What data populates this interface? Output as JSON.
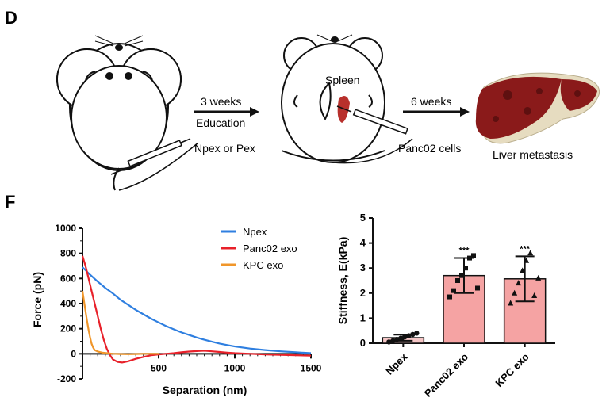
{
  "panel_d": {
    "label": "D",
    "arrow1_top": "3 weeks",
    "arrow1_bottom": "Education",
    "injection_label": "Npex or Pex",
    "spleen_label": "Spleen",
    "arrow2_top": "6 weeks",
    "cells_label": "Panc02 cells",
    "liver_label": "Liver metastasis"
  },
  "panel_f": {
    "label": "F"
  },
  "colors": {
    "npex": "#2f7fe0",
    "panc02": "#e8212a",
    "kpc": "#f0962a",
    "spleen": "#b8302c",
    "liver": "#8a1a1a",
    "bar_panc02": "#f5a3a3",
    "bar_kpc": "#f5a3a3",
    "bar_npex": "#f5c6c6"
  },
  "chart_data": [
    {
      "type": "line",
      "xlabel": "Separation (nm)",
      "ylabel": "Force (pN)",
      "xlim": [
        0,
        1500
      ],
      "ylim": [
        -200,
        1000
      ],
      "xticks": [
        "500",
        "1000",
        "1500"
      ],
      "yticks": [
        "-200",
        "0",
        "200",
        "400",
        "600",
        "800",
        "1000"
      ],
      "legend_position": "top-right",
      "series": [
        {
          "name": "Npex",
          "color": "#2f7fe0",
          "points": [
            [
              0,
              690
            ],
            [
              50,
              630
            ],
            [
              100,
              575
            ],
            [
              150,
              525
            ],
            [
              200,
              480
            ],
            [
              250,
              430
            ],
            [
              300,
              390
            ],
            [
              350,
              350
            ],
            [
              400,
              315
            ],
            [
              450,
              280
            ],
            [
              500,
              250
            ],
            [
              550,
              220
            ],
            [
              600,
              195
            ],
            [
              650,
              170
            ],
            [
              700,
              150
            ],
            [
              750,
              130
            ],
            [
              800,
              112
            ],
            [
              850,
              96
            ],
            [
              900,
              82
            ],
            [
              950,
              70
            ],
            [
              1000,
              58
            ],
            [
              1100,
              42
            ],
            [
              1200,
              30
            ],
            [
              1300,
              20
            ],
            [
              1400,
              12
            ],
            [
              1500,
              5
            ]
          ]
        },
        {
          "name": "Panc02 exo",
          "color": "#e8212a",
          "points": [
            [
              0,
              780
            ],
            [
              20,
              700
            ],
            [
              40,
              600
            ],
            [
              60,
              500
            ],
            [
              80,
              400
            ],
            [
              100,
              300
            ],
            [
              120,
              200
            ],
            [
              140,
              110
            ],
            [
              160,
              40
            ],
            [
              180,
              -10
            ],
            [
              200,
              -45
            ],
            [
              230,
              -65
            ],
            [
              260,
              -70
            ],
            [
              300,
              -60
            ],
            [
              350,
              -40
            ],
            [
              400,
              -25
            ],
            [
              450,
              -12
            ],
            [
              500,
              -5
            ],
            [
              550,
              0
            ],
            [
              600,
              5
            ],
            [
              650,
              12
            ],
            [
              700,
              18
            ],
            [
              750,
              22
            ],
            [
              800,
              25
            ],
            [
              850,
              20
            ],
            [
              900,
              15
            ],
            [
              950,
              10
            ],
            [
              1000,
              5
            ],
            [
              1100,
              0
            ],
            [
              1200,
              -5
            ],
            [
              1300,
              -8
            ],
            [
              1400,
              -12
            ],
            [
              1500,
              -15
            ]
          ]
        },
        {
          "name": "KPC exo",
          "color": "#f0962a",
          "points": [
            [
              0,
              500
            ],
            [
              10,
              420
            ],
            [
              20,
              340
            ],
            [
              30,
              260
            ],
            [
              40,
              190
            ],
            [
              50,
              130
            ],
            [
              60,
              80
            ],
            [
              70,
              50
            ],
            [
              80,
              30
            ],
            [
              100,
              18
            ],
            [
              130,
              10
            ],
            [
              160,
              5
            ],
            [
              200,
              0
            ],
            [
              250,
              -2
            ],
            [
              300,
              -3
            ],
            [
              350,
              -2
            ],
            [
              400,
              0
            ],
            [
              450,
              0
            ],
            [
              500,
              0
            ]
          ]
        }
      ]
    },
    {
      "type": "bar",
      "ylabel": "Stiffness, E(kPa)",
      "ylim": [
        0,
        5
      ],
      "yticks": [
        "0",
        "1",
        "2",
        "3",
        "4",
        "5"
      ],
      "categories": [
        "Npex",
        "Panc02 exo",
        "KPC exo"
      ],
      "values": [
        0.22,
        2.7,
        2.57
      ],
      "errors": [
        0.12,
        0.7,
        0.9
      ],
      "significance": [
        "",
        "***",
        "***"
      ],
      "points": [
        [
          0.05,
          0.1,
          0.15,
          0.2,
          0.25,
          0.3,
          0.35,
          0.4
        ],
        [
          1.85,
          2.1,
          2.5,
          2.7,
          3.0,
          3.4,
          3.5,
          2.2
        ],
        [
          1.6,
          2.0,
          2.4,
          2.9,
          3.3,
          3.6,
          1.9,
          2.6
        ]
      ]
    }
  ]
}
